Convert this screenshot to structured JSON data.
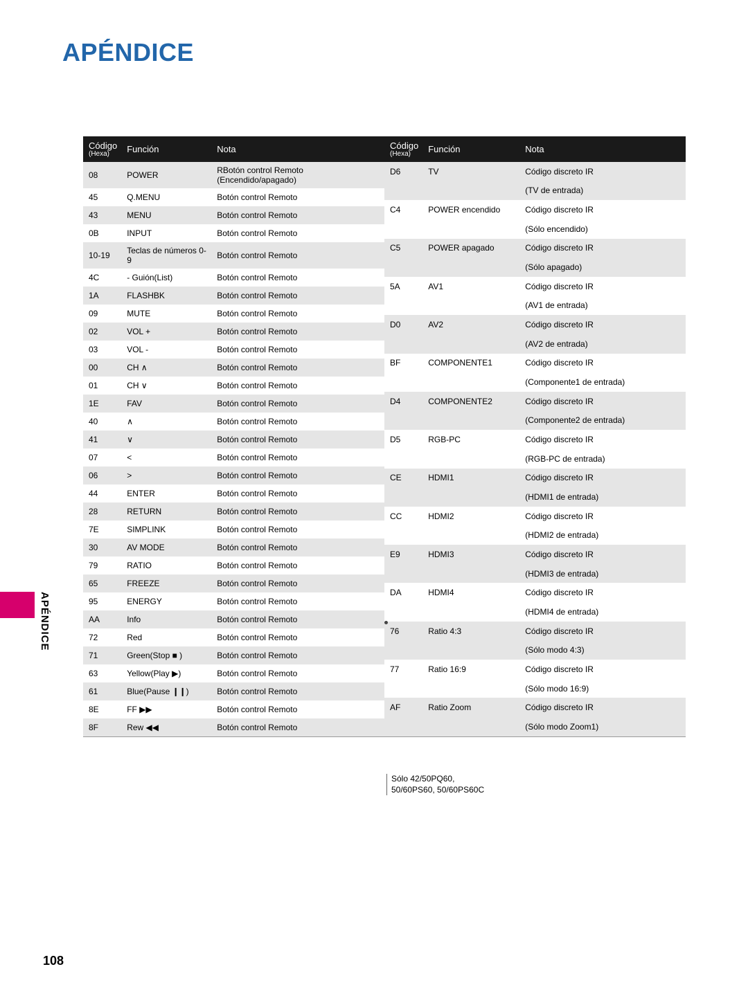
{
  "page_title": "APÉNDICE",
  "side_label": "APÉNDICE",
  "page_num": "108",
  "headers": [
    "Código (Hexa)",
    "Función",
    "Nota"
  ],
  "footnote_line1": "Sólo 42/50PQ60,",
  "footnote_line2": "50/60PS60, 50/60PS60C",
  "left": [
    {
      "c": "08",
      "f": "POWER",
      "n": "RBotón control Remoto (Encendido/apagado)"
    },
    {
      "c": "45",
      "f": "Q.MENU",
      "n": "Botón control Remoto"
    },
    {
      "c": "43",
      "f": "MENU",
      "n": "Botón control Remoto"
    },
    {
      "c": "0B",
      "f": "INPUT",
      "n": "Botón control Remoto"
    },
    {
      "c": "10-19",
      "f": "Teclas de números 0-9",
      "n": "Botón control Remoto"
    },
    {
      "c": "4C",
      "f": "- Guión(List)",
      "n": "Botón control Remoto"
    },
    {
      "c": "1A",
      "f": "FLASHBK",
      "n": "Botón control Remoto"
    },
    {
      "c": "09",
      "f": "MUTE",
      "n": "Botón control Remoto"
    },
    {
      "c": "02",
      "f": "VOL +",
      "n": "Botón control Remoto"
    },
    {
      "c": "03",
      "f": "VOL -",
      "n": "Botón control Remoto"
    },
    {
      "c": "00",
      "f": "CH ∧",
      "n": "Botón control Remoto"
    },
    {
      "c": "01",
      "f": "CH ∨",
      "n": "Botón control Remoto"
    },
    {
      "c": "1E",
      "f": "FAV",
      "n": "Botón control Remoto"
    },
    {
      "c": "40",
      "f": "∧",
      "n": "Botón control Remoto"
    },
    {
      "c": "41",
      "f": "∨",
      "n": "Botón control Remoto"
    },
    {
      "c": "07",
      "f": "<",
      "n": "Botón control Remoto"
    },
    {
      "c": "06",
      "f": ">",
      "n": "Botón control Remoto"
    },
    {
      "c": "44",
      "f": "ENTER",
      "n": "Botón control Remoto"
    },
    {
      "c": "28",
      "f": "RETURN",
      "n": "Botón control Remoto"
    },
    {
      "c": "7E",
      "f": "SIMPLINK",
      "n": "Botón control Remoto"
    },
    {
      "c": "30",
      "f": "AV MODE",
      "n": "Botón control Remoto"
    },
    {
      "c": "79",
      "f": "RATIO",
      "n": "Botón control Remoto"
    },
    {
      "c": "65",
      "f": "FREEZE",
      "n": "Botón control Remoto"
    },
    {
      "c": "95",
      "f": "ENERGY",
      "n": "Botón control Remoto"
    },
    {
      "c": "AA",
      "f": "Info",
      "n": "Botón control Remoto"
    },
    {
      "c": "72",
      "f": "Red",
      "n": "Botón control Remoto"
    },
    {
      "c": "71",
      "f": "Green(Stop ■ )",
      "n": "Botón control Remoto"
    },
    {
      "c": "63",
      "f": "Yellow(Play ▶)",
      "n": "Botón control Remoto"
    },
    {
      "c": "61",
      "f": "Blue(Pause ❙❙)",
      "n": "Botón control Remoto"
    },
    {
      "c": "8E",
      "f": "FF ▶▶",
      "n": "Botón control Remoto"
    },
    {
      "c": "8F",
      "f": "Rew ◀◀",
      "n": "Botón control Remoto"
    }
  ],
  "right": [
    {
      "c": "D6",
      "f": "TV",
      "n": "Código discreto IR"
    },
    {
      "c": "",
      "f": "",
      "n": "(TV de entrada)"
    },
    {
      "c": "C4",
      "f": "POWER encendido",
      "n": "Código discreto IR"
    },
    {
      "c": "",
      "f": "",
      "n": "(Sólo encendido)"
    },
    {
      "c": "C5",
      "f": "POWER apagado",
      "n": "Código discreto IR"
    },
    {
      "c": "",
      "f": "",
      "n": "(Sólo apagado)"
    },
    {
      "c": "5A",
      "f": "AV1",
      "n": "Código discreto IR"
    },
    {
      "c": "",
      "f": "",
      "n": "(AV1 de entrada)"
    },
    {
      "c": "D0",
      "f": "AV2",
      "n": "Código discreto IR"
    },
    {
      "c": "",
      "f": "",
      "n": "(AV2 de entrada)"
    },
    {
      "c": "BF",
      "f": "COMPONENTE1",
      "n": "Código discreto IR"
    },
    {
      "c": "",
      "f": "",
      "n": "(Componente1 de entrada)"
    },
    {
      "c": "D4",
      "f": "COMPONENTE2",
      "n": "Código discreto IR"
    },
    {
      "c": "",
      "f": "",
      "n": "(Componente2 de entrada)"
    },
    {
      "c": "D5",
      "f": "RGB-PC",
      "n": "Código discreto IR"
    },
    {
      "c": "",
      "f": "",
      "n": "(RGB-PC de entrada)"
    },
    {
      "c": "CE",
      "f": "HDMI1",
      "n": "Código discreto IR"
    },
    {
      "c": "",
      "f": "",
      "n": "(HDMI1 de entrada)"
    },
    {
      "c": "CC",
      "f": "HDMI2",
      "n": "Código discreto IR"
    },
    {
      "c": "",
      "f": "",
      "n": "(HDMI2 de entrada)"
    },
    {
      "c": "E9",
      "f": "HDMI3",
      "n": "Código discreto IR"
    },
    {
      "c": "",
      "f": "",
      "n": "(HDMI3 de entrada)"
    },
    {
      "c": "DA",
      "f": "HDMI4",
      "n": "Código discreto IR"
    },
    {
      "c": "",
      "f": "",
      "n": "(HDMI4 de entrada)"
    },
    {
      "c": "76",
      "f": "Ratio 4:3",
      "n": "Código discreto IR"
    },
    {
      "c": "",
      "f": "",
      "n": "(Sólo modo 4:3)"
    },
    {
      "c": "77",
      "f": "Ratio 16:9",
      "n": "Código discreto IR"
    },
    {
      "c": "",
      "f": "",
      "n": "(Sólo modo 16:9)"
    },
    {
      "c": "AF",
      "f": "Ratio Zoom",
      "n": "Código discreto IR"
    },
    {
      "c": "",
      "f": "",
      "n": "(Sólo modo Zoom1)"
    }
  ]
}
